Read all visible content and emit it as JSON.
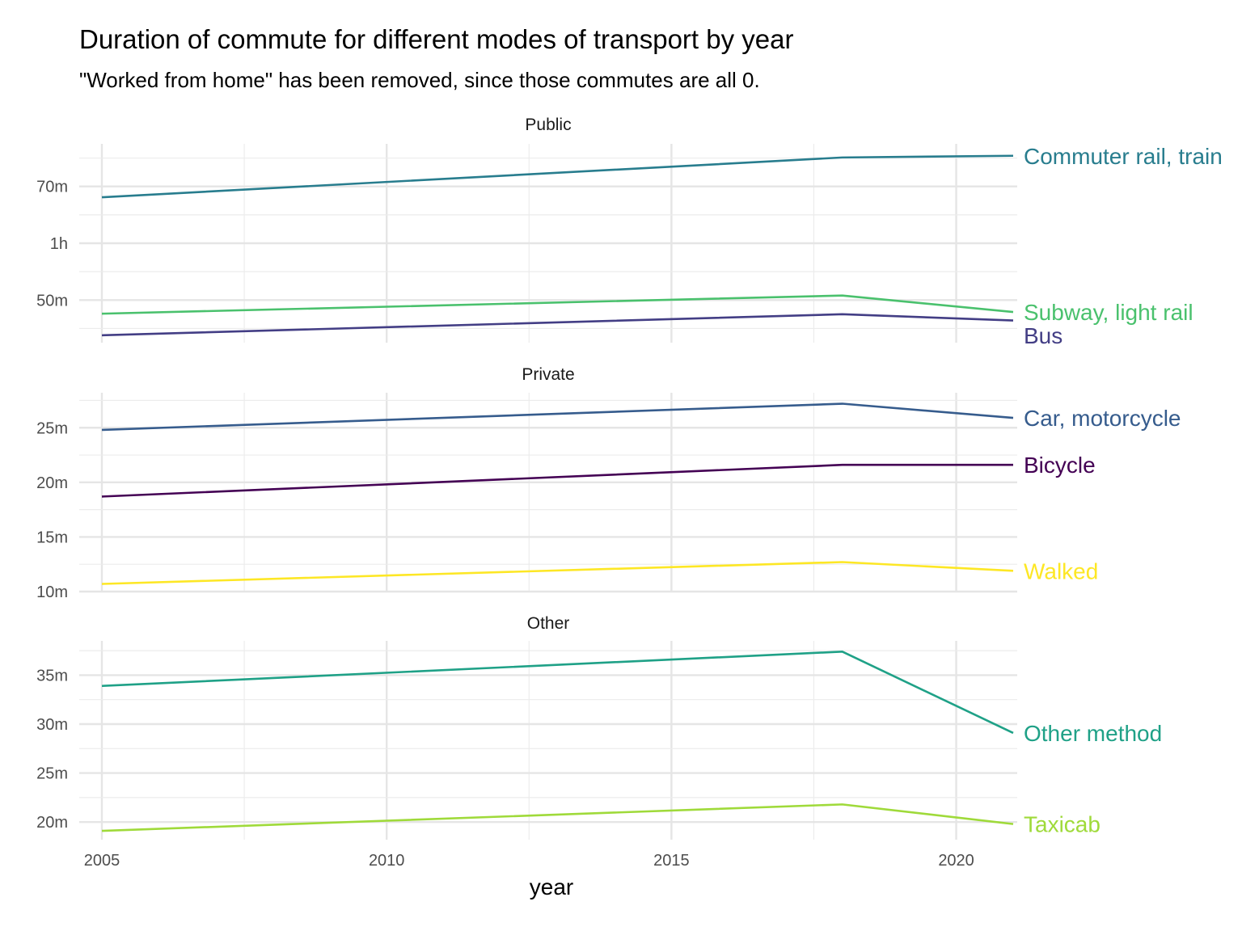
{
  "chart_data": {
    "type": "line",
    "title": "Duration of commute for different modes of transport by year",
    "subtitle": "\"Worked from home\" has been removed, since those commutes are all 0.",
    "xlabel": "year",
    "x_ticks": [
      2005,
      2010,
      2015,
      2020
    ],
    "xlim": [
      2005,
      2021
    ],
    "grid": true,
    "legend": "direct labels at line ends",
    "facets": [
      {
        "name": "Public",
        "ylim": [
          42.5,
          77.5
        ],
        "y_ticks": [
          {
            "value": 50,
            "label": "50m"
          },
          {
            "value": 60,
            "label": "1h"
          },
          {
            "value": 70,
            "label": "70m"
          }
        ],
        "series": [
          {
            "name": "Commuter rail, train",
            "color": "#287D8E",
            "x": [
              2005,
              2018,
              2021
            ],
            "y": [
              68.1,
              75.1,
              75.4
            ]
          },
          {
            "name": "Subway, light rail",
            "color": "#4AC16D",
            "x": [
              2005,
              2018,
              2021
            ],
            "y": [
              47.6,
              50.8,
              47.9
            ]
          },
          {
            "name": "Bus",
            "color": "#433E85",
            "x": [
              2005,
              2018,
              2021
            ],
            "y": [
              43.8,
              47.5,
              46.4
            ]
          }
        ]
      },
      {
        "name": "Private",
        "ylim": [
          10,
          28.2
        ],
        "y_ticks": [
          {
            "value": 10,
            "label": "10m"
          },
          {
            "value": 15,
            "label": "15m"
          },
          {
            "value": 20,
            "label": "20m"
          },
          {
            "value": 25,
            "label": "25m"
          }
        ],
        "series": [
          {
            "name": "Car, motorcycle",
            "color": "#365C8D",
            "x": [
              2005,
              2018,
              2021
            ],
            "y": [
              24.8,
              27.2,
              25.9
            ]
          },
          {
            "name": "Bicycle",
            "color": "#440154",
            "x": [
              2005,
              2018,
              2021
            ],
            "y": [
              18.7,
              21.6,
              21.6
            ]
          },
          {
            "name": "Walked",
            "color": "#FDE725",
            "x": [
              2005,
              2018,
              2021
            ],
            "y": [
              10.7,
              12.7,
              11.9
            ]
          }
        ]
      },
      {
        "name": "Other",
        "ylim": [
          18.2,
          38.5
        ],
        "y_ticks": [
          {
            "value": 20,
            "label": "20m"
          },
          {
            "value": 25,
            "label": "25m"
          },
          {
            "value": 30,
            "label": "30m"
          },
          {
            "value": 35,
            "label": "35m"
          }
        ],
        "series": [
          {
            "name": "Other method",
            "color": "#1FA187",
            "x": [
              2005,
              2018,
              2021
            ],
            "y": [
              33.9,
              37.4,
              29.1
            ]
          },
          {
            "name": "Taxicab",
            "color": "#9FDA3A",
            "x": [
              2005,
              2018,
              2021
            ],
            "y": [
              19.1,
              21.8,
              19.8
            ]
          }
        ]
      }
    ]
  }
}
